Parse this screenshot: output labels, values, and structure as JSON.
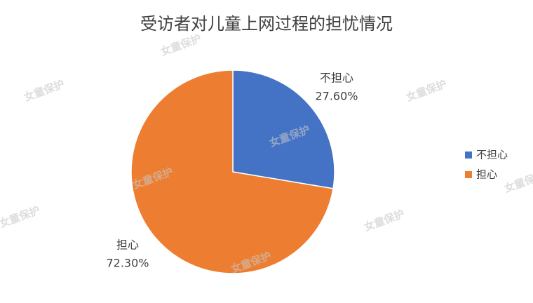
{
  "chart_data": {
    "type": "pie",
    "title": "受访者对儿童上网过程的担忧情况",
    "categories": [
      "不担心",
      "担心"
    ],
    "values": [
      27.6,
      72.3
    ],
    "value_labels": [
      "27.60%",
      "72.30%"
    ],
    "colors": [
      "#4472c4",
      "#ed7d31"
    ],
    "legend": "right",
    "watermark": "女童保护"
  }
}
